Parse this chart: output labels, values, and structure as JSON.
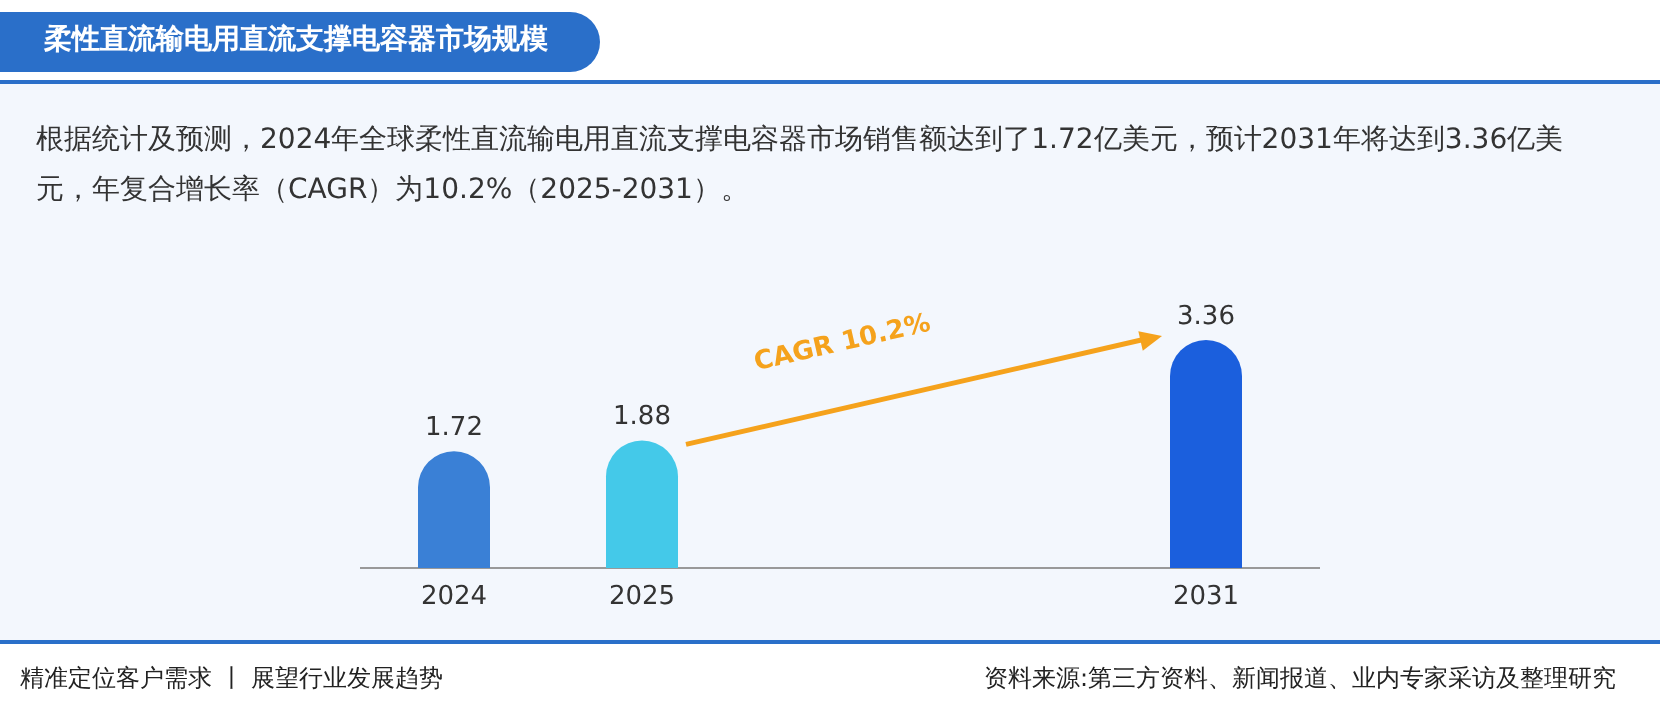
{
  "chart_data": {
    "type": "bar",
    "title": "柔性直流输电用直流支撑电容器市场规模",
    "subtitle": "根据统计及预测，2024年全球柔性直流输电用直流支撑电容器市场销售额达到了1.72亿美元，预计2031年将达到3.36亿美元，年复合增长率（CAGR）为10.2%（2025-2031）。",
    "categories": [
      "2024",
      "2025",
      null,
      null,
      "2031"
    ],
    "values": [
      1.72,
      1.88,
      null,
      null,
      3.36
    ],
    "colors": [
      "#3a80d6",
      "#44c9e9",
      null,
      null,
      "#1b5fdd"
    ],
    "data_labels": true,
    "annotations": [
      "CAGR 10.2%",
      "精准定位客户需求 丨 展望行业发展趋势",
      "资料来源:第三方资料、新闻报道、业内专家采访及整理研究"
    ]
  }
}
